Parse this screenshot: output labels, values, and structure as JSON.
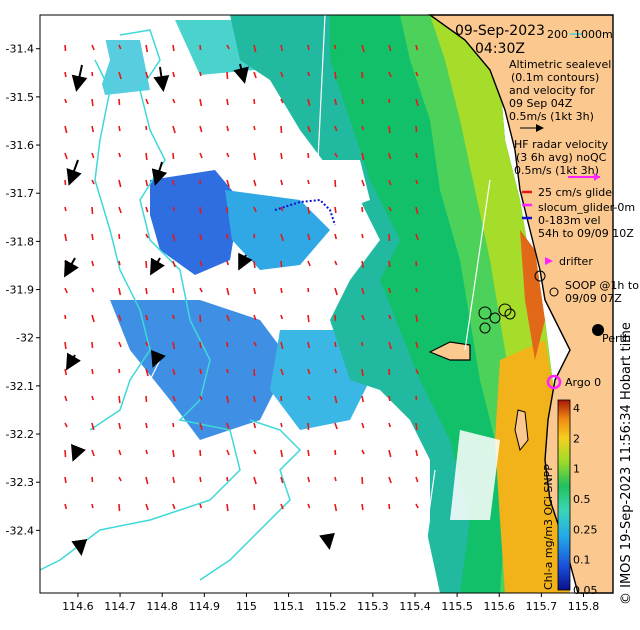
{
  "title": {
    "date": "09-Sep-2023",
    "time": "04:30Z"
  },
  "isobath_legend": {
    "depth1": "200",
    "depth2": "1000m"
  },
  "altimetry_legend": [
    "Altimetric sealevel",
    "(0.1m contours)",
    "and velocity for",
    "09 Sep 04Z",
    "0.5m/s (1kt 3h)"
  ],
  "hf_radar_legend": [
    "HF radar velocity",
    "(3 6h avg) noQC",
    "0.5m/s (1kt 3h)"
  ],
  "glider_legend": [
    "25 cm/s glide",
    "slocum_glider-0m",
    "0-183m vel",
    "54h to 09/09 10Z"
  ],
  "drifter_label": "drifter",
  "soop_legend": [
    "SOOP @1h to",
    "09/09 07Z"
  ],
  "city_label": "Perth",
  "argo_label": "Argo 0",
  "colorbar": {
    "title": "Chl-a mg/m3 OCi SNPP",
    "ticks": [
      "4",
      "2",
      "1",
      "0.5",
      "0.25",
      "0.1",
      "0.05"
    ]
  },
  "credit": "© IMOS 19-Sep-2023 11:56:34 Hobart time",
  "axes": {
    "x_ticks": [
      "114.6",
      "114.7",
      "114.8",
      "114.9",
      "115",
      "115.1",
      "115.2",
      "115.3",
      "115.4",
      "115.5",
      "115.6",
      "115.7",
      "115.8"
    ],
    "y_ticks": [
      "-31.4",
      "-31.5",
      "-31.6",
      "-31.7",
      "-31.8",
      "-31.9",
      "-32",
      "-32.1",
      "-32.2",
      "-32.3",
      "-32.4"
    ],
    "xlim": [
      114.51,
      115.87
    ],
    "ylim": [
      -32.53,
      -31.33
    ]
  },
  "colors": {
    "land": "#fbc98f",
    "isobath": "#3fd8d8",
    "hf_arrow": "#e81818",
    "glider": "#1010d0",
    "argo": "#ff22ff",
    "coast": "#000000"
  }
}
